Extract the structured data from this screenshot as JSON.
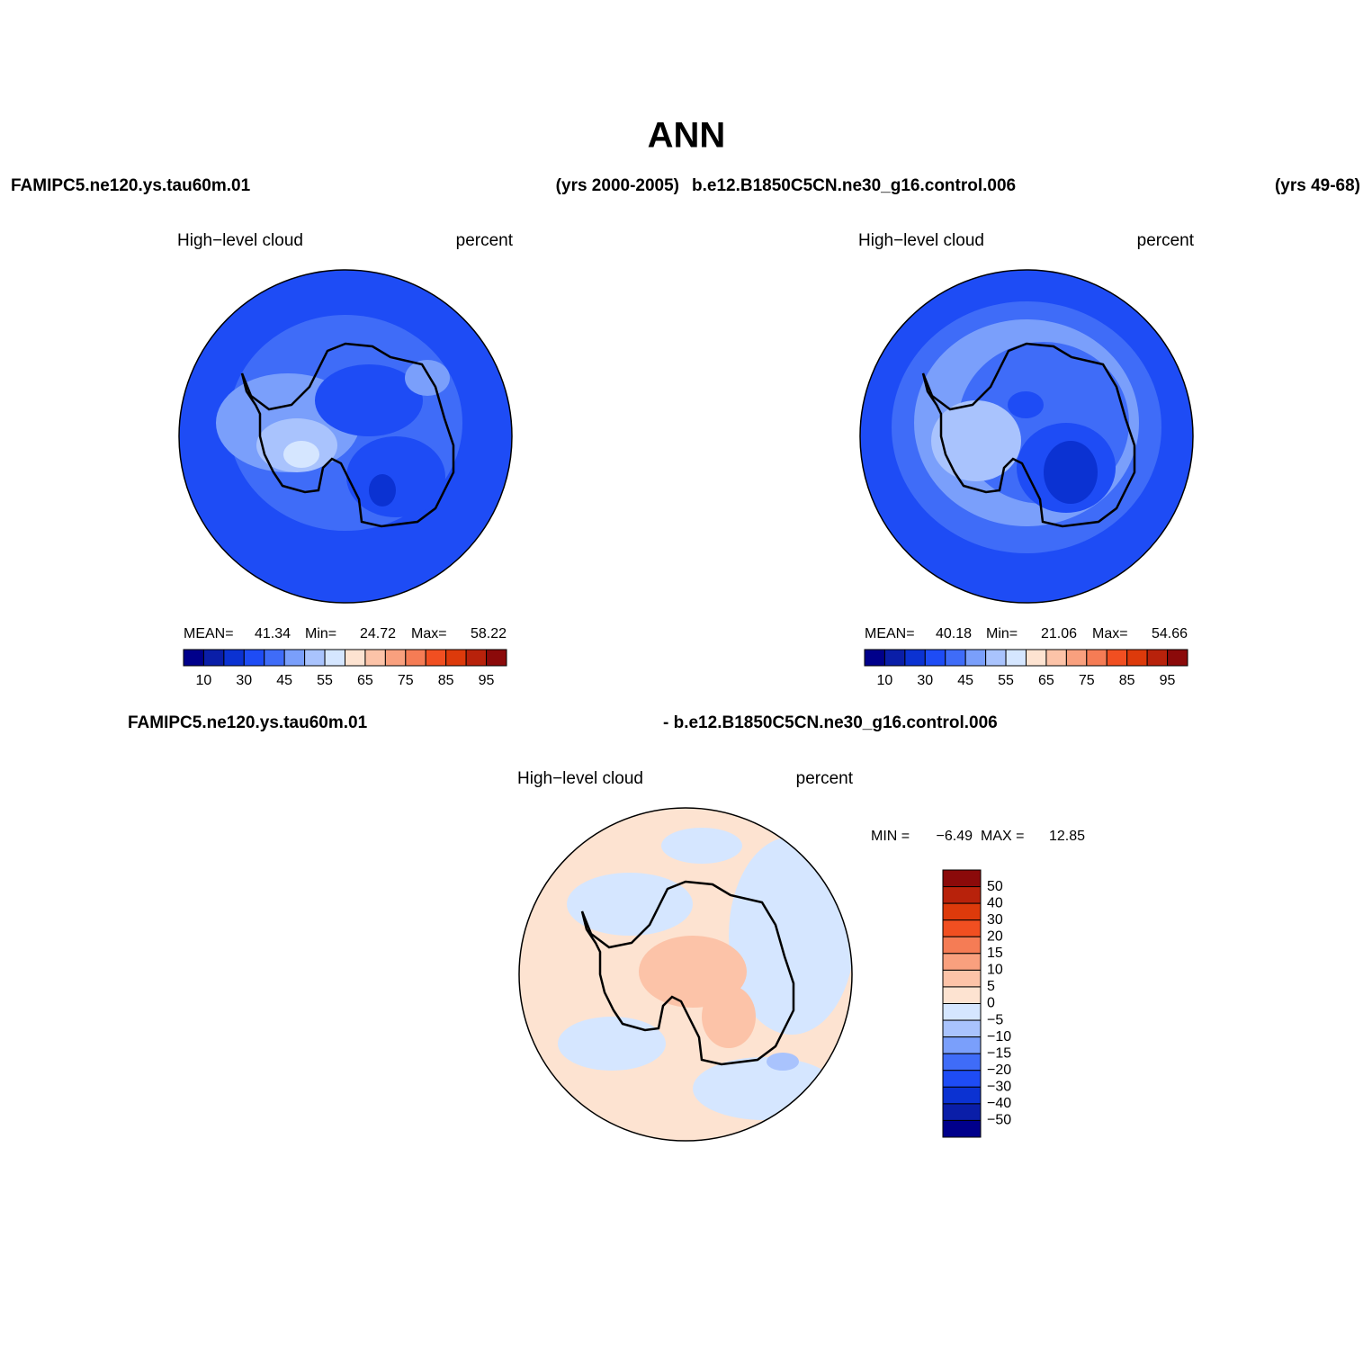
{
  "title": "ANN",
  "header": {
    "left_case": "FAMIPC5.ne120.ys.tau60m.01",
    "left_years": "(yrs 2000-2005)",
    "right_case": "b.e12.B1850C5CN.ne30_g16.control.006",
    "right_years": "(yrs 49-68)"
  },
  "panels": [
    {
      "variable": "High−level cloud",
      "units": "percent",
      "stats": [
        {
          "label": "MEAN=",
          "value": "41.34"
        },
        {
          "label": "Min=",
          "value": "24.72"
        },
        {
          "label": "Max=",
          "value": "58.22"
        }
      ],
      "colorbar": {
        "labels": [
          "10",
          "30",
          "45",
          "55",
          "65",
          "75",
          "85",
          "95"
        ],
        "colors": [
          "#00008b",
          "#0a1ea8",
          "#0b32d2",
          "#1e4cf5",
          "#3f6cf8",
          "#7a9ffb",
          "#a9c3fd",
          "#d5e6ff",
          "#fde3d1",
          "#fcc3a8",
          "#f9a07e",
          "#f57c55",
          "#f14f21",
          "#dd3a0b",
          "#b8220b",
          "#8b0a0a"
        ]
      }
    },
    {
      "variable": "High−level cloud",
      "units": "percent",
      "stats": [
        {
          "label": "MEAN=",
          "value": "40.18"
        },
        {
          "label": "Min=",
          "value": "21.06"
        },
        {
          "label": "Max=",
          "value": "54.66"
        }
      ],
      "colorbar": {
        "labels": [
          "10",
          "30",
          "45",
          "55",
          "65",
          "75",
          "85",
          "95"
        ],
        "colors": [
          "#00008b",
          "#0a1ea8",
          "#0b32d2",
          "#1e4cf5",
          "#3f6cf8",
          "#7a9ffb",
          "#a9c3fd",
          "#d5e6ff",
          "#fde3d1",
          "#fcc3a8",
          "#f9a07e",
          "#f57c55",
          "#f14f21",
          "#dd3a0b",
          "#b8220b",
          "#8b0a0a"
        ]
      }
    }
  ],
  "difference": {
    "case_a": "FAMIPC5.ne120.ys.tau60m.01",
    "case_b": "- b.e12.B1850C5CN.ne30_g16.control.006",
    "variable": "High−level cloud",
    "units": "percent",
    "min_label": "MIN =",
    "min": "−6.49",
    "max_label": "MAX =",
    "max": "12.85",
    "colorbar": {
      "labels": [
        "50",
        "40",
        "30",
        "20",
        "15",
        "10",
        "5",
        "0",
        "−5",
        "−10",
        "−15",
        "−20",
        "−30",
        "−40",
        "−50"
      ],
      "colors": [
        "#8b0a0a",
        "#b8220b",
        "#dd3a0b",
        "#f14f21",
        "#f57c55",
        "#f9a07e",
        "#fcc3a8",
        "#fde3d1",
        "#d5e6ff",
        "#a9c3fd",
        "#7a9ffb",
        "#3f6cf8",
        "#1e4cf5",
        "#0b32d2",
        "#0a1ea8",
        "#00008b"
      ]
    }
  }
}
